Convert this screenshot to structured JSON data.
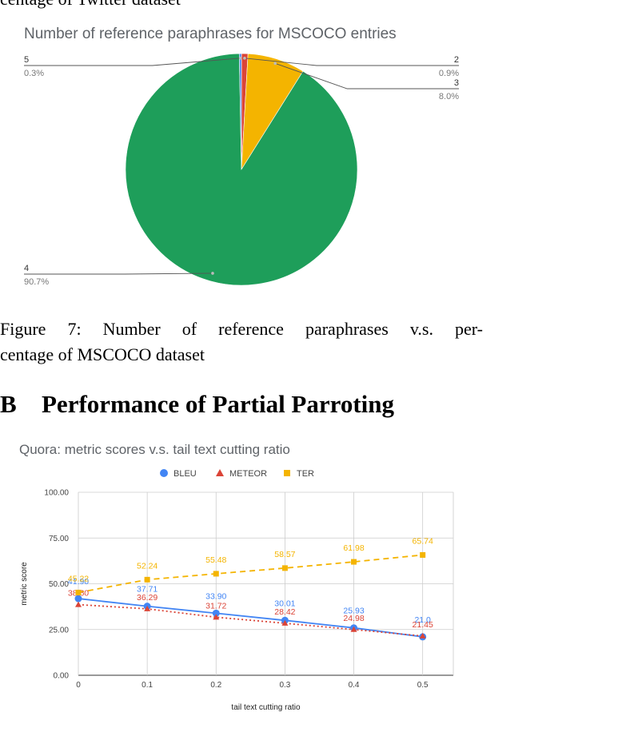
{
  "page": {
    "top_cut_text": "centage of Twitter dataset",
    "figure7_caption_line1_words": [
      "Figure",
      "7:",
      "Number",
      "of",
      "reference",
      "paraphrases",
      "v.s.",
      "per-"
    ],
    "figure7_caption_line2": "centage of MSCOCO dataset",
    "section_number": "B",
    "section_title": "Performance of Partial Parroting"
  },
  "chart_data": [
    {
      "type": "pie",
      "title": "Number of reference paraphrases for MSCOCO entries",
      "slices": [
        {
          "label": "2",
          "percent_label": "0.9%",
          "value": 0.9,
          "color": "#db4437"
        },
        {
          "label": "3",
          "percent_label": "8.0%",
          "value": 8.0,
          "color": "#f4b400"
        },
        {
          "label": "4",
          "percent_label": "90.7%",
          "value": 90.7,
          "color": "#1e9e5a"
        },
        {
          "label": "5",
          "percent_label": "0.3%",
          "value": 0.3,
          "color": "#4285f4"
        }
      ]
    },
    {
      "type": "line",
      "title": "Quora: metric scores v.s. tail text cutting ratio",
      "xlabel": "tail text cutting ratio",
      "ylabel": "metric score",
      "xlim": [
        0,
        0.52
      ],
      "ylim": [
        0,
        100
      ],
      "x_ticks": [
        "0",
        "0.1",
        "0.2",
        "0.3",
        "0.4",
        "0.5"
      ],
      "y_ticks": [
        "0.00",
        "25.00",
        "50.00",
        "75.00",
        "100.00"
      ],
      "legend_position": "top",
      "grid": true,
      "x": [
        0,
        0.1,
        0.2,
        0.3,
        0.4,
        0.5
      ],
      "series": [
        {
          "name": "BLEU",
          "color": "#4285f4",
          "marker": "circle",
          "dash": "solid",
          "values": [
            41.9,
            37.7,
            33.9,
            30.0,
            25.9,
            21.0
          ],
          "labels": [
            "41.90",
            "37.71",
            "33.90",
            "30.01",
            "25.93",
            "21.0"
          ]
        },
        {
          "name": "METEOR",
          "color": "#db4437",
          "marker": "triangle",
          "dash": "dotted",
          "values": [
            38.6,
            36.29,
            31.72,
            28.42,
            24.98,
            21.45
          ],
          "labels": [
            "38.60",
            "36.29",
            "31.72",
            "28.42",
            "24.98",
            "21.45"
          ]
        },
        {
          "name": "TER",
          "color": "#f4b400",
          "marker": "square",
          "dash": "dashed",
          "values": [
            45.22,
            52.24,
            55.48,
            58.57,
            61.98,
            65.74
          ],
          "labels": [
            "45.22",
            "52.24",
            "55.48",
            "58.57",
            "61.98",
            "65.74"
          ]
        }
      ]
    }
  ]
}
